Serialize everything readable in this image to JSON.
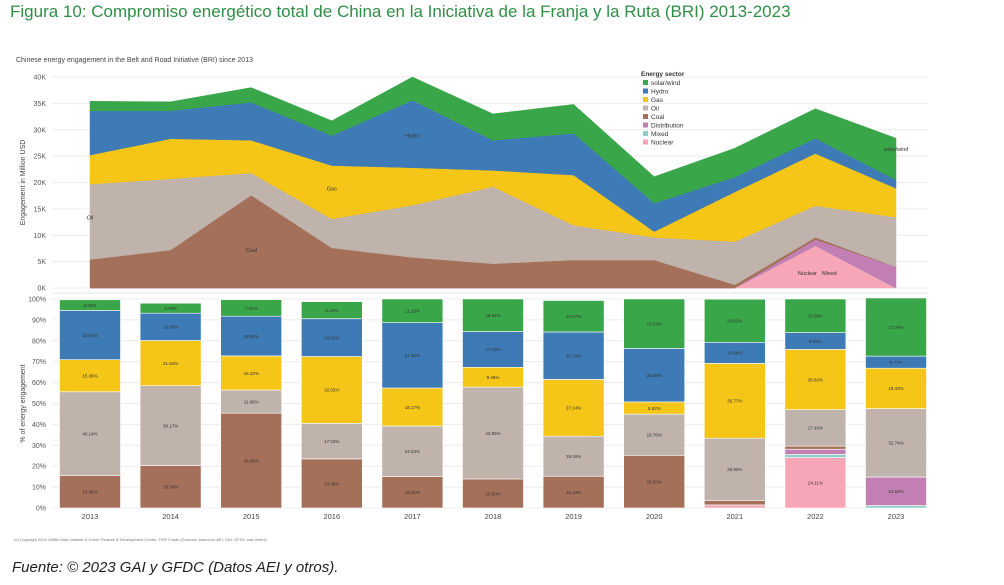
{
  "figure_title": "Figura 10: Compromiso energético total de China en la Iniciativa de la Franja y la Ruta (BRI) 2013-2023",
  "source": "Fuente: © 2023 GAI y GFDC (Datos AEI y otros).",
  "copyright": "(c) Copyright 2024 Griffith Asia Institute & Green Finance & Development Center, FISF Fudan (Sources: based on AEI, GAI, GFDC and others)",
  "colors": {
    "solar_wind": "#3aa64a",
    "hydro": "#3e7bb6",
    "gas": "#f5c518",
    "oil": "#bfb3ab",
    "coal": "#a5705a",
    "distribution": "#c17fb3",
    "mixed": "#8fcfc8",
    "nuclear": "#f7a6b7"
  },
  "chart_data": [
    {
      "type": "area",
      "title": "Chinese energy engagement in the Belt and Road Initiative (BRI) since 2013",
      "xlabel": "",
      "ylabel": "Engagement in Million USD",
      "ylim": [
        0,
        40000
      ],
      "y_ticks": [
        "0K",
        "5K",
        "10K",
        "15K",
        "20K",
        "25K",
        "30K",
        "35K",
        "40K"
      ],
      "categories": [
        "2013",
        "2014",
        "2015",
        "2016",
        "2017",
        "2018",
        "2019",
        "2020",
        "2021",
        "2022",
        "2023"
      ],
      "legend_title": "Energy sector",
      "legend_position": "top-right",
      "series": [
        {
          "name": "Nuclear",
          "key": "nuclear",
          "values": [
            0,
            0,
            0,
            0,
            0,
            0,
            0,
            0,
            0,
            8000,
            0
          ]
        },
        {
          "name": "Mixed",
          "key": "mixed",
          "values": [
            0,
            0,
            0,
            0,
            0,
            0,
            0,
            0,
            0,
            0,
            0
          ]
        },
        {
          "name": "Distribution",
          "key": "distribution",
          "values": [
            0,
            0,
            0,
            0,
            0,
            0,
            0,
            0,
            0,
            1200,
            4000
          ]
        },
        {
          "name": "Coal",
          "key": "coal",
          "values": [
            5400,
            7200,
            17600,
            7600,
            5800,
            4600,
            5300,
            5300,
            600,
            400,
            0
          ]
        },
        {
          "name": "Oil",
          "key": "oil",
          "values": [
            14300,
            13500,
            4200,
            5500,
            9900,
            14600,
            6600,
            4300,
            8200,
            6000,
            9400
          ]
        },
        {
          "name": "Gas",
          "key": "gas",
          "values": [
            5500,
            7600,
            6200,
            10100,
            7100,
            3100,
            9500,
            1100,
            9400,
            9900,
            5500
          ]
        },
        {
          "name": "Hydro",
          "key": "hydro",
          "values": [
            8400,
            5300,
            7200,
            5700,
            12800,
            5700,
            7900,
            5400,
            2800,
            2900,
            1600
          ]
        },
        {
          "name": "solar/wind",
          "key": "solar_wind",
          "values": [
            1800,
            1700,
            2800,
            2800,
            4400,
            5000,
            5500,
            5000,
            5500,
            5600,
            7900
          ]
        }
      ],
      "annotations": [
        {
          "text": "Oil",
          "category": "2013",
          "value": 13000
        },
        {
          "text": "Coal",
          "category": "2015",
          "value": 6800
        },
        {
          "text": "Gas",
          "category": "2016",
          "value": 18500
        },
        {
          "text": "Hydro",
          "category": "2017",
          "value": 28500
        },
        {
          "text": "solar/wind",
          "category": "2023",
          "value": 26000
        },
        {
          "text": "Nuclear",
          "category": "2022",
          "value": 2500
        },
        {
          "text": "Mixed",
          "category": "2022",
          "value": 2500
        }
      ]
    },
    {
      "type": "bar",
      "title": "",
      "xlabel": "",
      "ylabel": "% of energy engagement",
      "ylim": [
        0,
        100
      ],
      "y_ticks": [
        "0%",
        "10%",
        "20%",
        "30%",
        "40%",
        "50%",
        "60%",
        "70%",
        "80%",
        "90%",
        "100%"
      ],
      "categories": [
        "2013",
        "2014",
        "2015",
        "2016",
        "2017",
        "2018",
        "2019",
        "2020",
        "2021",
        "2022",
        "2023"
      ],
      "series": [
        {
          "name": "Nuclear",
          "key": "nuclear",
          "values": [
            0,
            0,
            0,
            0,
            0,
            0,
            0,
            0,
            1.5,
            24.11,
            0
          ],
          "labels": [
            "",
            "",
            "",
            "",
            "",
            "",
            "",
            "",
            "",
            "24.11%",
            ""
          ]
        },
        {
          "name": "Mixed",
          "key": "mixed",
          "values": [
            0,
            0,
            0,
            0,
            0,
            0,
            0,
            0,
            0,
            1.5,
            1.2
          ],
          "labels": [
            "",
            "",
            "",
            "",
            "",
            "",
            "",
            "",
            "",
            "",
            ""
          ]
        },
        {
          "name": "Distribution",
          "key": "distribution",
          "values": [
            0,
            0,
            0,
            0,
            0,
            0,
            0,
            0,
            0,
            2.5,
            13.63
          ],
          "labels": [
            "",
            "",
            "",
            "",
            "",
            "",
            "",
            "",
            "",
            "",
            "13.63%"
          ]
        },
        {
          "name": "Coal",
          "key": "coal",
          "values": [
            15.45,
            20.34,
            45.39,
            23.48,
            15.01,
            13.9,
            15.19,
            25.2,
            2.0,
            1.5,
            0
          ],
          "labels": [
            "15.45%",
            "20.34%",
            "45.39%",
            "23.48%",
            "15.01%",
            "13.90%",
            "15.19%",
            "25.20%",
            "",
            "",
            ""
          ]
        },
        {
          "name": "Oil",
          "key": "oil",
          "values": [
            40.14,
            38.17,
            11.06,
            17.03,
            24.23,
            43.96,
            19.16,
            19.76,
            29.93,
            17.45,
            32.74
          ],
          "labels": [
            "40.14%",
            "38.17%",
            "11.06%",
            "17.03%",
            "24.23%",
            "43.96%",
            "19.16%",
            "19.76%",
            "29.93%",
            "17.45%",
            "32.74%"
          ]
        },
        {
          "name": "Gas",
          "key": "gas",
          "values": [
            15.36,
            21.64,
            16.32,
            32.02,
            18.17,
            9.46,
            27.14,
            5.82,
            35.77,
            28.82,
            19.33
          ],
          "labels": [
            "15.36%",
            "21.64%",
            "16.32%",
            "32.02%",
            "18.17%",
            "9.46%",
            "27.14%",
            "5.82%",
            "35.77%",
            "28.82%",
            "19.33%"
          ]
        },
        {
          "name": "Hydro",
          "key": "hydro",
          "values": [
            23.6,
            13.06,
            18.99,
            18.02,
            31.3,
            17.15,
            22.7,
            25.59,
            10.09,
            8.05,
            5.77
          ],
          "labels": [
            "23.60%",
            "13.06%",
            "18.99%",
            "18.02%",
            "31.30%",
            "17.15%",
            "22.70%",
            "25.59%",
            "10.09%",
            "8.05%",
            "5.77%"
          ]
        },
        {
          "name": "solar/wind",
          "key": "solar_wind",
          "values": [
            5.06,
            4.79,
            7.91,
            8.14,
            11.29,
            15.54,
            15.07,
            23.63,
            20.62,
            16.09,
            27.79
          ],
          "labels": [
            "5.06%",
            "4.79%",
            "7.91%",
            "8.14%",
            "11.29%",
            "15.54%",
            "15.07%",
            "23.63%",
            "20.62%",
            "16.09%",
            "27.79%"
          ]
        }
      ]
    }
  ]
}
